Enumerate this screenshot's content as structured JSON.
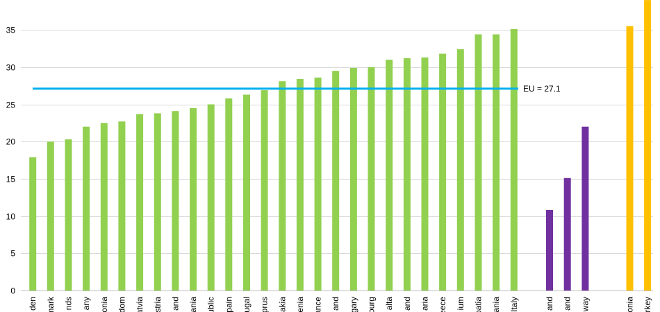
{
  "chart_data": {
    "type": "bar",
    "title": "",
    "xlabel": "",
    "ylabel": "",
    "ylim": [
      0,
      39
    ],
    "yticks": [
      0,
      5,
      10,
      15,
      20,
      25,
      30,
      35
    ],
    "grid": true,
    "groups": [
      {
        "color": "#92d050",
        "categories": [
          "den",
          "mark",
          "nds",
          "any",
          "onia",
          "dom",
          "atvia",
          "stria",
          "and",
          "ania",
          "ublic",
          "pain",
          "ugal",
          "prus",
          "akia",
          "enia",
          "ance",
          "and",
          "gary",
          "ourg",
          "alta",
          "and",
          "aria",
          "eece",
          "ium",
          "oatia",
          "ania",
          "Italy"
        ],
        "values": [
          17.9,
          20.0,
          20.3,
          22.0,
          22.5,
          22.7,
          23.7,
          23.8,
          24.1,
          24.5,
          25.0,
          25.8,
          26.3,
          26.9,
          28.1,
          28.4,
          28.6,
          29.5,
          29.9,
          30.0,
          31.0,
          31.2,
          31.3,
          31.8,
          32.4,
          34.4,
          34.4,
          35.1
        ]
      },
      {
        "color": "#7030a0",
        "categories": [
          "and",
          "and",
          "way"
        ],
        "values": [
          10.8,
          15.1,
          22.0
        ]
      },
      {
        "color": "#ffc000",
        "categories": [
          "onia",
          "rkey"
        ],
        "values": [
          35.5,
          39.0
        ]
      }
    ],
    "reference_line": {
      "value": 27.1,
      "label": "EU = 27.1",
      "color": "#00b0f0"
    }
  }
}
